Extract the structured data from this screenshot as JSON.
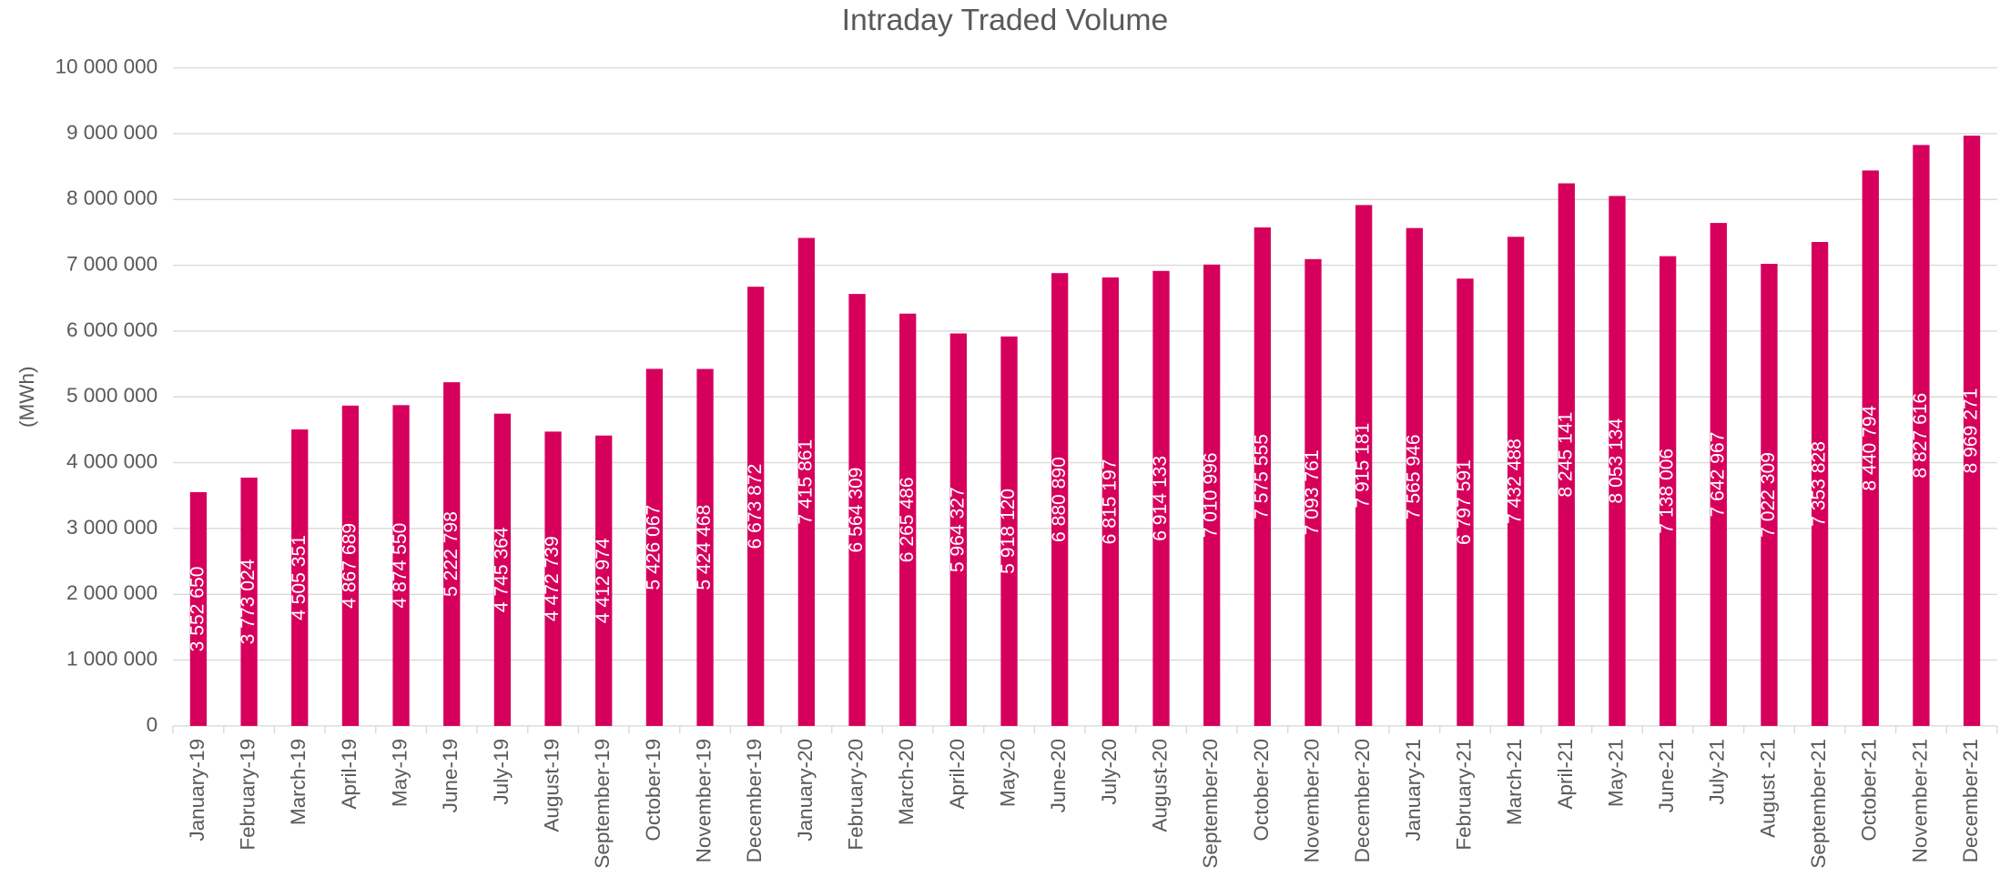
{
  "chart_data": {
    "type": "bar",
    "title": "Intraday Traded Volume",
    "y_label": "(MWh)",
    "color": "#d6005c",
    "grid": true,
    "ylim": [
      0,
      10000000
    ],
    "yticks": [
      0,
      {
        "value": 1000000,
        "label": "1 000 000"
      },
      {
        "value": 2000000,
        "label": "2 000 000"
      },
      {
        "value": 3000000,
        "label": "3 000 000"
      },
      {
        "value": 4000000,
        "label": "4 000 000"
      },
      {
        "value": 5000000,
        "label": "5 000 000"
      },
      {
        "value": 6000000,
        "label": "6 000 000"
      },
      {
        "value": 7000000,
        "label": "7 000 000"
      },
      {
        "value": 8000000,
        "label": "8 000 000"
      },
      {
        "value": 9000000,
        "label": "9 000 000"
      },
      {
        "value": 10000000,
        "label": "10 000 000"
      }
    ],
    "categories": [
      "January-19",
      "February-19",
      "March-19",
      "April-19",
      "May-19",
      "June-19",
      "July-19",
      "August-19",
      "September-19",
      "October-19",
      "November-19",
      "December-19",
      "January-20",
      "February-20",
      "March-20",
      "April-20",
      "May-20",
      "June-20",
      "July-20",
      "August-20",
      "September-20",
      "October-20",
      "November-20",
      "December-20",
      "January-21",
      "February-21",
      "March-21",
      "April-21",
      "May-21",
      "June-21",
      "July-21",
      "August -21",
      "September-21",
      "October-21",
      "November-21",
      "December-21"
    ],
    "values": [
      3552650,
      3773024,
      4505351,
      4867689,
      4874550,
      5222798,
      4745364,
      4472739,
      4412974,
      5426067,
      5424468,
      6673872,
      7415861,
      6564309,
      6265486,
      5964327,
      5918120,
      6880890,
      6815197,
      6914133,
      7010996,
      7575555,
      7093761,
      7915181,
      7565946,
      6797591,
      7432488,
      8245141,
      8053134,
      7138006,
      7642967,
      7022309,
      7353828,
      8440794,
      8827616,
      8969271
    ],
    "value_labels": [
      "3 552 650",
      "3 773 024",
      "4 505 351",
      "4 867 689",
      "4 874 550",
      "5 222 798",
      "4 745 364",
      "4 472 739",
      "4 412 974",
      "5 426 067",
      "5 424 468",
      "6 673 872",
      "7 415 861",
      "6 564 309",
      "6 265 486",
      "5 964 327",
      "5 918 120",
      "6 880 890",
      "6 815 197",
      "6 914 133",
      "7 010 996",
      "7 575 555",
      "7 093 761",
      "7 915 181",
      "7 565 946",
      "6 797 591",
      "7 432 488",
      "8 245 141",
      "8 053 134",
      "7 138 006",
      "7 642 967",
      "7 022 309",
      "7 353 828",
      "8 440 794",
      "8 827 616",
      "8 969 271"
    ]
  }
}
